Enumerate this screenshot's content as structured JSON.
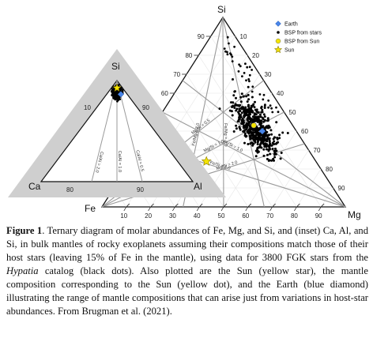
{
  "main_ternary": {
    "vertex_labels": {
      "top": "Si",
      "left": "Fe",
      "right": "Mg"
    },
    "bottom_ticks": [
      "10",
      "20",
      "30",
      "40",
      "50",
      "60",
      "70",
      "80",
      "90"
    ],
    "left_ticks": [
      "10",
      "20",
      "30",
      "40",
      "50",
      "60",
      "70",
      "80",
      "90"
    ],
    "right_ticks": [
      "10",
      "20",
      "30",
      "40",
      "50",
      "60",
      "70",
      "80",
      "90"
    ],
    "guide_lines": [
      {
        "label": "Fe/Mg = 2.0",
        "from": [
          0.6667,
          0.3333,
          0
        ],
        "to": [
          0,
          0,
          1
        ]
      },
      {
        "label": "Fe/Mg = 1.0",
        "from": [
          0.5,
          0.5,
          0
        ],
        "to": [
          0,
          0,
          1
        ]
      },
      {
        "label": "Fe/Mg = 0.5",
        "from": [
          0.3333,
          0.6667,
          0
        ],
        "to": [
          0,
          0,
          1
        ]
      },
      {
        "label": "Mg/Si = 0.5",
        "from": [
          0,
          0.3333,
          0.6667
        ],
        "to": [
          1,
          0,
          0
        ]
      },
      {
        "label": "Mg/Si = 1.0",
        "from": [
          0,
          0.5,
          0.5
        ],
        "to": [
          1,
          0,
          0
        ]
      },
      {
        "label": "Fe/Si = 0.5",
        "from": [
          0.3333,
          0,
          0.6667
        ],
        "to": [
          0,
          1,
          0
        ]
      },
      {
        "label": "Fe/Si = 1.0",
        "from": [
          0.5,
          0,
          0.5
        ],
        "to": [
          0,
          1,
          0
        ]
      },
      {
        "label": "Mg/Si = 2.0",
        "from": [
          0,
          0.6667,
          0.3333
        ],
        "to": [
          1,
          0,
          0
        ]
      },
      {
        "label": "Fe/Si = 2.0",
        "from": [
          0.6667,
          0,
          0.3333
        ],
        "to": [
          0,
          1,
          0
        ]
      }
    ]
  },
  "legend": {
    "items": [
      {
        "label": "Earth",
        "marker": "diamond",
        "color": "#4a86e8"
      },
      {
        "label": "BSP from stars",
        "marker": "dot",
        "color": "#000000"
      },
      {
        "label": "BSP from Sun",
        "marker": "dot",
        "color": "#f4e400"
      },
      {
        "label": "Sun",
        "marker": "star",
        "color": "#f4e400"
      }
    ]
  },
  "inset_ternary": {
    "vertex_labels": {
      "top": "Si",
      "left": "Ca",
      "right": "Al"
    },
    "ticks": [
      "10",
      "90",
      "80",
      "90"
    ],
    "guide_lines": [
      {
        "label": "Ca/Al = 2.0",
        "from": [
          0.6667,
          0.3333,
          0
        ],
        "to": [
          0,
          0,
          1
        ]
      },
      {
        "label": "Ca/Al = 1.0",
        "from": [
          0.5,
          0.5,
          0
        ],
        "to": [
          0,
          0,
          1
        ]
      },
      {
        "label": "Ca/Al = 0.5",
        "from": [
          0.3333,
          0.6667,
          0
        ],
        "to": [
          0,
          0,
          1
        ]
      }
    ]
  },
  "chart_data": [
    {
      "type": "scatter",
      "title": "",
      "axes": [
        "Fe",
        "Mg",
        "Si"
      ],
      "series": [
        {
          "name": "BSP from stars",
          "cluster": {
            "center": {
              "Fe": 0.16,
              "Mg": 0.42,
              "Si": 0.42
            },
            "approx_points": 3800
          }
        },
        {
          "name": "BSP from Sun",
          "points": [
            {
              "Fe": 0.16,
              "Mg": 0.41,
              "Si": 0.43
            }
          ]
        },
        {
          "name": "Sun",
          "points": [
            {
              "Fe": 0.45,
              "Mg": 0.31,
              "Si": 0.24
            }
          ]
        },
        {
          "name": "Earth",
          "points": [
            {
              "Fe": 0.14,
              "Mg": 0.46,
              "Si": 0.4
            }
          ]
        }
      ]
    },
    {
      "type": "scatter",
      "title": "",
      "axes": [
        "Ca",
        "Al",
        "Si"
      ],
      "series": [
        {
          "name": "BSP from stars",
          "cluster": {
            "center": {
              "Ca": 0.06,
              "Al": 0.06,
              "Si": 0.88
            }
          }
        },
        {
          "name": "Sun",
          "points": [
            {
              "Ca": 0.06,
              "Al": 0.06,
              "Si": 0.88
            }
          ]
        },
        {
          "name": "Earth",
          "points": [
            {
              "Ca": 0.05,
              "Al": 0.07,
              "Si": 0.88
            }
          ]
        }
      ]
    }
  ],
  "caption": {
    "label": "Figure 1",
    "text_a": ". Ternary diagram of molar abundances of Fe, Mg, and Si, and (inset) Ca, Al, and Si, in bulk mantles of rocky exoplanets assuming their compositions match those of their host stars (leaving 15% of Fe in the mantle), using data for 3800 FGK stars from the ",
    "catalog": "Hypatia",
    "text_b": " catalog (black dots). Also plotted are the Sun (yellow star), the mantle composition corresponding to the Sun (yellow dot), and the Earth (blue diamond) illustrating the range of mantle compositions that can arise just from variations in host-star abundances. From Brugman et al. (2021)."
  }
}
